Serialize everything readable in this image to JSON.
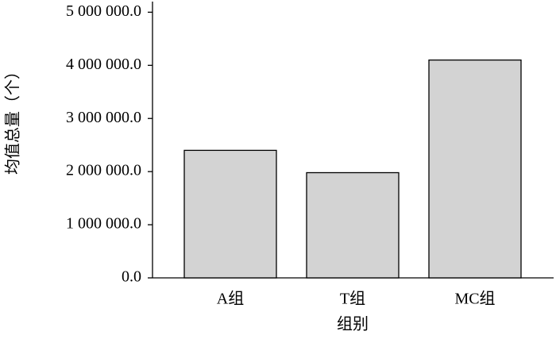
{
  "chart_data": {
    "type": "bar",
    "y_label": "均值总量（个）",
    "x_label": "组别",
    "categories": [
      "A组",
      "T组",
      "MC组"
    ],
    "values": [
      2400000,
      1980000,
      4100000
    ],
    "color": "#d3d3d3",
    "ylim": [
      0,
      5200000
    ],
    "yticks": [
      {
        "value": 0,
        "label": "0.0"
      },
      {
        "value": 1000000,
        "label": "1 000 000.0"
      },
      {
        "value": 2000000,
        "label": "2 000 000.0"
      },
      {
        "value": 3000000,
        "label": "3 000 000.0"
      },
      {
        "value": 4000000,
        "label": "4 000 000.0"
      },
      {
        "value": 5000000,
        "label": "5 000 000.0"
      }
    ],
    "grid": false
  }
}
